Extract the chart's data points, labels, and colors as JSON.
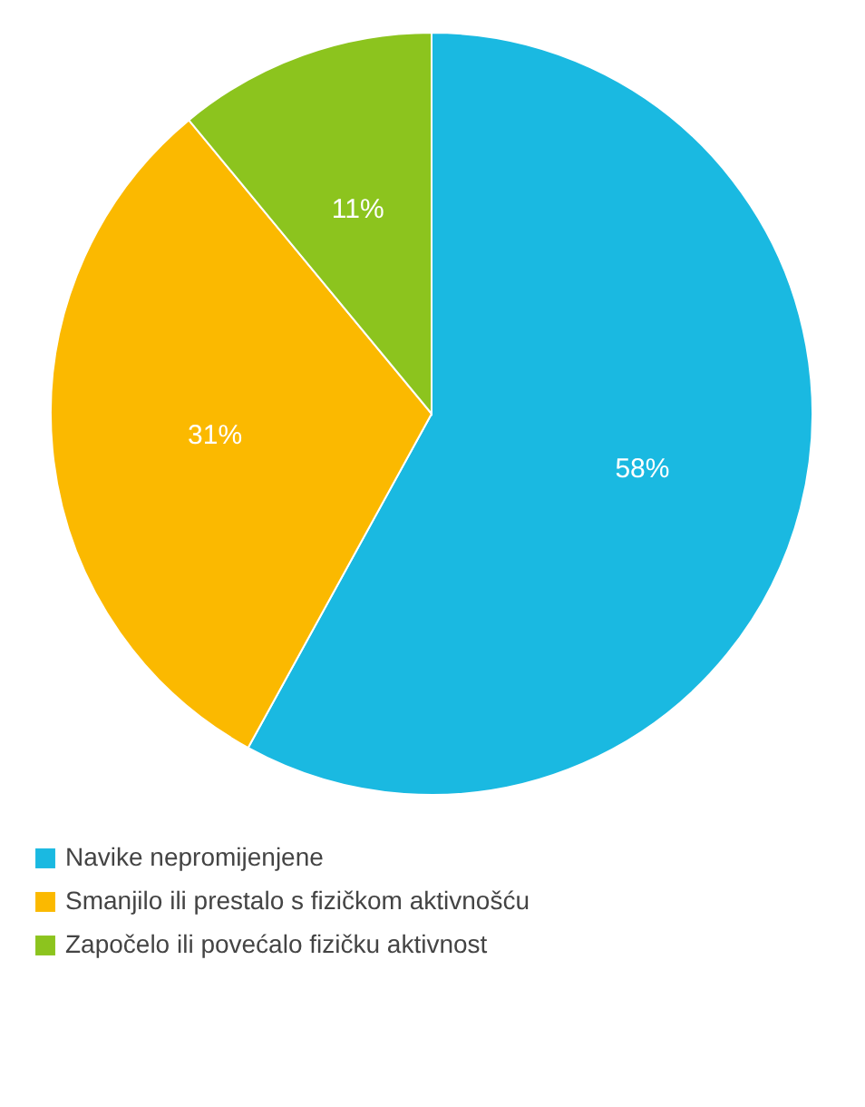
{
  "chart_data": {
    "type": "pie",
    "categories": [
      "Navike nepromijenjene",
      "Smanjilo ili prestalo s fizičkom aktivnošću",
      "Započelo ili povećalo fizičku aktivnost"
    ],
    "values": [
      58,
      31,
      11
    ],
    "colors": [
      "#1ab9e1",
      "#fbb900",
      "#8cc41e"
    ],
    "value_labels": [
      "58%",
      "31%",
      "11%"
    ],
    "legend": "bottom"
  }
}
